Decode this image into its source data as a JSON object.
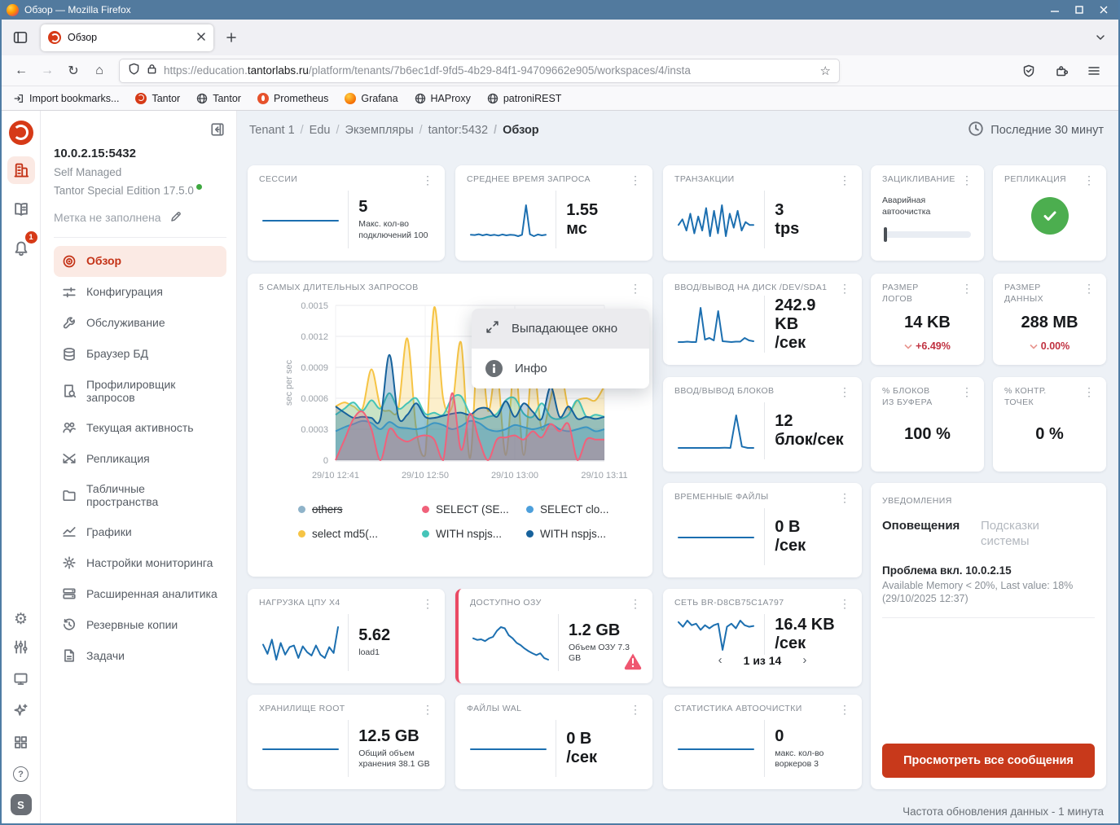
{
  "window": {
    "title": "Обзор — Mozilla Firefox"
  },
  "browser": {
    "tab": {
      "title": "Обзор"
    },
    "url_prefix": "https://education.",
    "url_domain": "tantorlabs.ru",
    "url_path": "/platform/tenants/7b6ec1df-9fd5-4b29-84f1-94709662e905/workspaces/4/insta",
    "bookmarks": [
      {
        "label": "Import bookmarks..."
      },
      {
        "label": "Tantor"
      },
      {
        "label": "Tantor"
      },
      {
        "label": "Prometheus"
      },
      {
        "label": "Grafana"
      },
      {
        "label": "HAProxy"
      },
      {
        "label": "patroniREST"
      }
    ]
  },
  "icons": {
    "back": "←",
    "forward": "→",
    "reload": "↻",
    "home": "⌂",
    "star": "☆",
    "kebab": "⋮",
    "gear": "⚙",
    "question": "?",
    "chevron_left": "‹",
    "chevron_right": "›"
  },
  "rail": {
    "notifications_badge": "1",
    "avatar": "S"
  },
  "sidebar": {
    "instance": {
      "address": "10.0.2.15:5432",
      "managed": "Self Managed",
      "edition": "Tantor Special Edition 17.5.0",
      "label_placeholder": "Метка не заполнена"
    },
    "items": [
      {
        "label": "Обзор"
      },
      {
        "label": "Конфигурация"
      },
      {
        "label": "Обслуживание"
      },
      {
        "label": "Браузер БД"
      },
      {
        "label": "Профилировщик запросов"
      },
      {
        "label": "Текущая активность"
      },
      {
        "label": "Репликация"
      },
      {
        "label": "Табличные пространства"
      },
      {
        "label": "Графики"
      },
      {
        "label": "Настройки мониторинга"
      },
      {
        "label": "Расширенная аналитика"
      },
      {
        "label": "Резервные копии"
      },
      {
        "label": "Задачи"
      }
    ]
  },
  "header": {
    "breadcrumb": [
      "Tenant 1",
      "Edu",
      "Экземпляры",
      "tantor:5432",
      "Обзор"
    ],
    "time_range": "Последние 30 минут"
  },
  "cards": {
    "sessions": {
      "title": "СЕССИИ",
      "lines": [
        "5"
      ],
      "subtitle": "Макс. кол-во подключений 100",
      "spark": [
        5,
        5,
        5,
        5,
        5,
        5,
        5,
        5
      ]
    },
    "avg_query_time": {
      "title": "СРЕДНЕЕ ВРЕМЯ ЗАПРОСА",
      "lines": [
        "1.55",
        "мс"
      ],
      "spark": [
        1.2,
        1.15,
        1.3,
        1.1,
        1.25,
        1.1,
        1.2,
        1.05,
        1.25,
        1.1,
        1.2,
        1.15,
        0.95,
        1.2,
        6.4,
        1.3,
        0.95,
        1.25,
        1.1,
        1.2
      ]
    },
    "transactions": {
      "title": "ТРАНЗАКЦИИ",
      "lines": [
        "3",
        "tps"
      ],
      "spark": [
        3,
        4,
        2,
        5,
        1.5,
        4.5,
        2,
        6,
        1,
        5.5,
        1.5,
        6.5,
        1,
        5,
        2.5,
        5.5,
        2,
        3.5,
        3,
        3
      ]
    },
    "wraparound": {
      "title": "ЗАЦИКЛИВАНИЕ",
      "label": "Аварийная автоочистка"
    },
    "replication": {
      "title": "РЕПЛИКАЦИЯ"
    },
    "disk_io": {
      "title": "ВВОД/ВЫВОД НА ДИСК /DEV/SDA1",
      "lines": [
        "242.9",
        "KB",
        "/сек"
      ],
      "spark": [
        4,
        4,
        5,
        4,
        4,
        88,
        10,
        14,
        8,
        80,
        6,
        5,
        4,
        5,
        5,
        14,
        8,
        6
      ]
    },
    "log_size": {
      "title": "РАЗМЕР ЛОГОВ",
      "lines": [
        "14 KB"
      ],
      "delta": "+6.49%"
    },
    "data_size": {
      "title": "РАЗМЕР ДАННЫХ",
      "lines": [
        "288 MB"
      ],
      "delta": "0.00%"
    },
    "block_io": {
      "title": "ВВОД/ВЫВОД БЛОКОВ",
      "lines": [
        "12",
        "блок/сек"
      ],
      "spark": [
        0.5,
        0.5,
        0.5,
        0.5,
        0.5,
        0.5,
        0.5,
        0.5,
        0.6,
        0.5,
        12,
        1,
        0.5,
        0.5
      ]
    },
    "buffer_blocks": {
      "title": "% БЛОКОВ ИЗ БУФЕРА",
      "lines": [
        "100 %"
      ]
    },
    "checkpoints": {
      "title": "% КОНТР. ТОЧЕК",
      "lines": [
        "0 %"
      ]
    },
    "temp_files": {
      "title": "ВРЕМЕННЫЕ ФАЙЛЫ",
      "lines": [
        "0 B",
        "/сек"
      ],
      "spark": [
        0,
        0,
        0,
        0,
        0,
        0
      ]
    },
    "cpu_load": {
      "title": "НАГРУЗКА ЦПУ X4",
      "lines": [
        "5.62"
      ],
      "subtitle": "load1",
      "spark": [
        4.2,
        3.1,
        4.8,
        2.4,
        4.4,
        3.0,
        3.9,
        4.1,
        2.6,
        4.0,
        3.3,
        2.9,
        4.1,
        3.0,
        2.6,
        3.9,
        3.2,
        6.3
      ]
    },
    "ram": {
      "title": "ДОСТУПНО ОЗУ",
      "lines": [
        "1.2 GB"
      ],
      "subtitle": "Объем ОЗУ 7.3 GB",
      "spark": [
        2.05,
        2.0,
        2.02,
        1.96,
        2.05,
        2.1,
        2.3,
        2.42,
        2.38,
        2.15,
        2.05,
        1.9,
        1.83,
        1.72,
        1.63,
        1.56,
        1.5,
        1.56,
        1.4,
        1.35
      ]
    },
    "network": {
      "title": "СЕТЬ BR-D8CB75C1A797",
      "lines": [
        "16.4 KB",
        "/сек"
      ],
      "pagination": "1 из 14",
      "spark": [
        20,
        17,
        21,
        18,
        19,
        15,
        18,
        16,
        18,
        19,
        2,
        17,
        19,
        16,
        21,
        18,
        17,
        17.5
      ]
    },
    "storage_root": {
      "title": "ХРАНИЛИЩЕ ROOT",
      "lines": [
        "12.5 GB"
      ],
      "subtitle": "Общий объем хранения 38.1 GB",
      "spark": [
        12.5,
        12.5,
        12.5,
        12.5,
        12.5,
        12.5
      ]
    },
    "wal_files": {
      "title": "ФАЙЛЫ WAL",
      "lines": [
        "0 B",
        "/сек"
      ],
      "spark": [
        0,
        0,
        0,
        0,
        0,
        0
      ]
    },
    "autovacuum": {
      "title": "СТАТИСТИКА АВТООЧИСТКИ",
      "lines": [
        "0"
      ],
      "subtitle": "макс. кол-во воркеров 3",
      "spark": [
        0,
        0,
        0,
        0,
        0,
        0
      ]
    }
  },
  "chart_data": {
    "type": "area",
    "title": "5 САМЫХ ДЛИТЕЛЬНЫХ ЗАПРОСОВ",
    "ylabel": "sec per sec",
    "ylim": [
      0,
      0.0015
    ],
    "yticks": [
      "0",
      "0.0003",
      "0.0006",
      "0.0009",
      "0.0012",
      "0.0015"
    ],
    "xticks": [
      "29/10 12:41",
      "29/10 12:50",
      "29/10 13:00",
      "29/10 13:11"
    ],
    "legend_position": "bottom",
    "grid": true,
    "series": [
      {
        "name": "others",
        "color": "#8fb3c9",
        "disabled": true,
        "values": []
      },
      {
        "name": "SELECT (SE...",
        "color": "#f0617a",
        "values": [
          0.0,
          0.0002,
          0.0004,
          0.00047,
          0.0003,
          0.0,
          0.0003,
          0.00022,
          0.00018,
          0.00022,
          0.00024,
          0.0002,
          0.0,
          0.00065,
          0.0001,
          0.00045,
          0.0002,
          0.0,
          0.0002,
          0.00022,
          0.00024,
          0.0002,
          0.00028,
          0.00022,
          0.00035,
          0.00028,
          0.00035,
          0.0,
          0.0002,
          0.0002,
          0.0002
        ]
      },
      {
        "name": "SELECT clo...",
        "color": "#4d9fdb",
        "values": [
          0.00028,
          0.00032,
          0.00035,
          0.00038,
          0.00036,
          0.0003,
          0.00037,
          0.00032,
          0.00031,
          0.0003,
          0.00032,
          0.00036,
          0.00034,
          0.0003,
          0.00033,
          0.00038,
          0.00036,
          0.0003,
          0.00028,
          0.0003,
          0.00034,
          0.00032,
          0.0003,
          0.00032,
          0.00035,
          0.0003,
          0.00028,
          0.0003,
          0.00032,
          0.00028,
          0.0003
        ]
      },
      {
        "name": "select md5(...",
        "color": "#f6c445",
        "values": [
          0.00052,
          0.00056,
          0.00052,
          0.0005,
          0.00088,
          0.00052,
          0.00048,
          0.0005,
          0.00118,
          0.0003,
          5e-05,
          0.00148,
          0.0006,
          0.00052,
          0.00114,
          2e-05,
          0.00125,
          0.00048,
          0.00088,
          5e-05,
          0.00095,
          5e-05,
          0.00095,
          0.0003,
          0.0006,
          0.00092,
          0.0005,
          0.00058,
          0.0006,
          0.00058,
          0.00072
        ]
      },
      {
        "name": "WITH nspjs...",
        "color": "#45c4b8",
        "values": [
          0.00044,
          0.0005,
          0.00056,
          0.00048,
          0.00058,
          0.0005,
          0.00065,
          0.0005,
          0.00055,
          0.0006,
          0.00045,
          0.00046,
          0.00044,
          0.0006,
          0.00062,
          0.00045,
          0.0004,
          0.00042,
          0.00045,
          0.00058,
          0.0006,
          0.00045,
          0.00042,
          0.00055,
          0.00042,
          0.0004,
          0.00044,
          0.00058,
          0.00042,
          0.00044,
          0.00042
        ]
      },
      {
        "name": "WITH nspjs...",
        "color": "#17629c",
        "values": [
          0.00052,
          0.00046,
          0.00041,
          0.00042,
          0.00041,
          0.0004,
          0.00102,
          0.00042,
          0.00044,
          0.00055,
          0.00042,
          0.00041,
          0.00043,
          0.00045,
          0.00046,
          0.00044,
          0.0005,
          0.0005,
          0.00042,
          0.00057,
          0.00042,
          0.00055,
          0.00047,
          0.0004,
          0.00071,
          0.00042,
          0.00052,
          0.0004,
          0.00042,
          0.0004,
          0.00042
        ]
      }
    ]
  },
  "dropdown": {
    "items": [
      {
        "label": "Выпадающее окно"
      },
      {
        "label": "Инфо"
      }
    ]
  },
  "notifications": {
    "title": "УВЕДОМЛЕНИЯ",
    "tabs": [
      {
        "label": "Оповещения"
      },
      {
        "label": "Подсказки системы"
      }
    ],
    "alert_title": "Проблема вкл. 10.0.2.15",
    "alert_text": "Available Memory < 20%, Last value: 18% (29/10/2025 12:37)",
    "button": "Просмотреть все сообщения"
  },
  "footer": {
    "refresh_note": "Частота обновления данных - 1 минута"
  }
}
